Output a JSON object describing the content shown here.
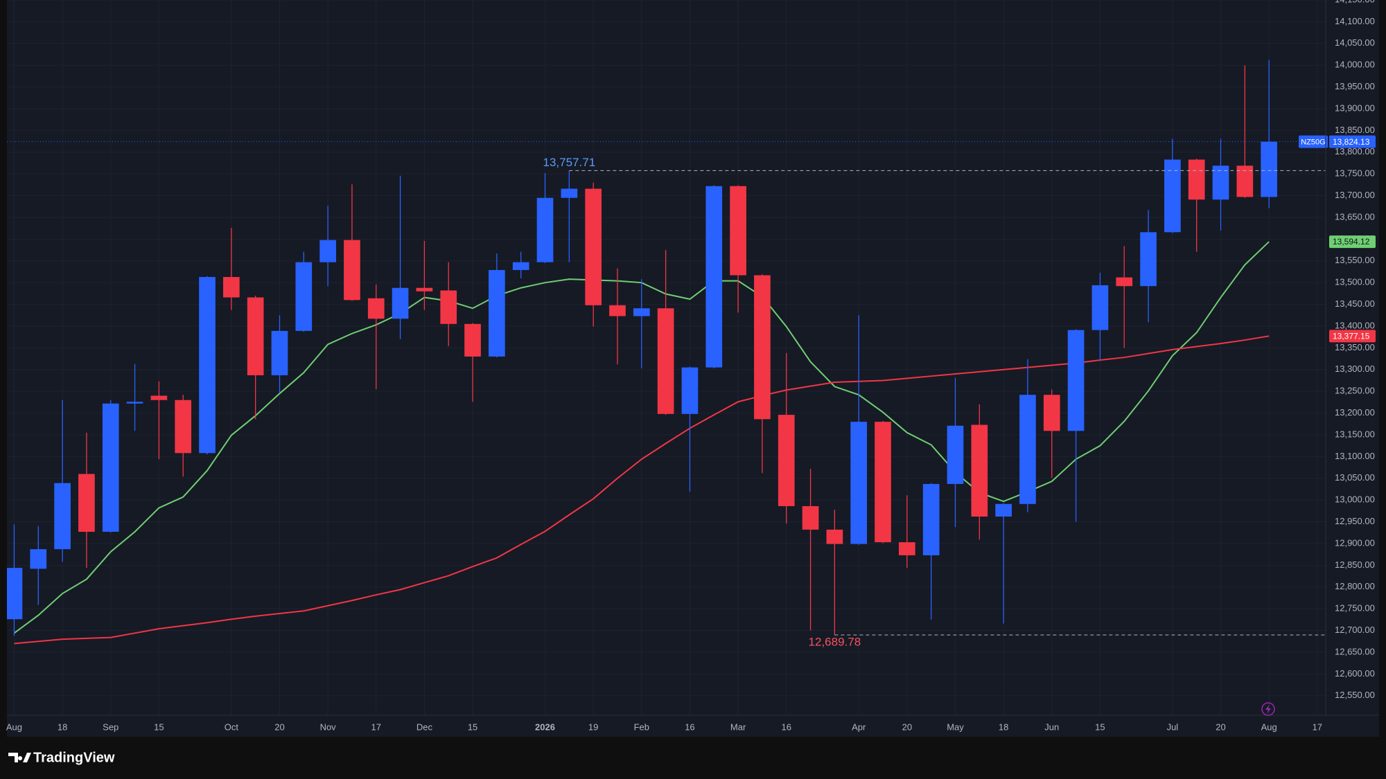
{
  "chart_data": {
    "type": "candlestick",
    "symbol": "NZ50G",
    "up_color": "#2962ff",
    "down_color": "#f23645",
    "open": [
      12726,
      12842,
      12887,
      13060,
      12927,
      13222,
      13240,
      13230,
      13108,
      13513,
      13466,
      13287,
      13389,
      13547,
      13598,
      13464,
      13417,
      13488,
      13482,
      13405,
      13330,
      13529,
      13547,
      13695,
      13716,
      13448,
      13423,
      13441,
      13198,
      13305,
      13722,
      13517,
      13196,
      12986,
      12932,
      12899,
      13180,
      12903,
      12873,
      13037,
      13173,
      12962,
      12991,
      13242,
      13159,
      13391,
      13512,
      13492,
      13616,
      13783,
      13691,
      13769,
      13697
    ],
    "high": [
      12944,
      12940,
      13230,
      13155,
      13230,
      13313,
      13273,
      13242,
      13515,
      13626,
      13470,
      13425,
      13571,
      13677,
      13726,
      13496,
      13746,
      13596,
      13547,
      13407,
      13567,
      13571,
      13752,
      13757.71,
      13730,
      13533,
      13508,
      13575,
      13307,
      13724,
      13724,
      13519,
      13338,
      13072,
      12978,
      13425,
      13182,
      13011,
      13039,
      13281,
      13220,
      12993,
      13324,
      13254,
      13393,
      13523,
      13584,
      13667,
      13831,
      13785,
      13831,
      14000,
      14012
    ],
    "low": [
      12688,
      12759,
      12858,
      12844,
      12925,
      13159,
      13094,
      13054,
      13105,
      13437,
      13186,
      13246,
      13387,
      13492,
      13458,
      13255,
      13370,
      13437,
      13354,
      13226,
      13328,
      13510,
      13545,
      13547,
      13399,
      13312,
      13303,
      13196,
      13019,
      13303,
      13431,
      13062,
      12946,
      12700,
      12689.78,
      12897,
      12901,
      12844,
      12725,
      12938,
      12909,
      12716,
      12972,
      13051,
      12950,
      13320,
      13350,
      13409,
      13614,
      13571,
      13620,
      13695,
      13671
    ],
    "close": [
      12844,
      12887,
      13039,
      12927,
      13222,
      13226,
      13230,
      13108,
      13513,
      13466,
      13287,
      13389,
      13547,
      13598,
      13460,
      13417,
      13488,
      13480,
      13405,
      13330,
      13529,
      13547,
      13695,
      13716,
      13448,
      13423,
      13441,
      13198,
      13305,
      13722,
      13517,
      13186,
      12986,
      12932,
      12899,
      13180,
      12903,
      12873,
      13037,
      13171,
      12962,
      12991,
      13242,
      13159,
      13391,
      13494,
      13492,
      13616,
      13783,
      13691,
      13769,
      13697,
      13824.13
    ],
    "price_label": "13,824.13",
    "lines": [
      {
        "color": "#6fcf72",
        "values": [
          12694,
          12735,
          12785,
          12818,
          12881,
          12927,
          12982,
          13007,
          13068,
          13149,
          13194,
          13245,
          13293,
          13358,
          13383,
          13403,
          13429,
          13466,
          13458,
          13441,
          13470,
          13488,
          13500,
          13508,
          13506,
          13504,
          13500,
          13474,
          13462,
          13504,
          13504,
          13468,
          13399,
          13318,
          13261,
          13242,
          13202,
          13155,
          13127,
          13064,
          13017,
          12997,
          13019,
          13043,
          13094,
          13125,
          13181,
          13251,
          13332,
          13385,
          13466,
          13541,
          13594.12
        ],
        "last_label": "13,594.12"
      },
      {
        "color": "#f23645",
        "values": [
          12670,
          12675,
          12680,
          12682,
          12684,
          12694,
          12704,
          12711,
          12718,
          12726,
          12733,
          12739,
          12745,
          12757,
          12769,
          12782,
          12794,
          12810,
          12826,
          12847,
          12867,
          12898,
          12928,
          12966,
          13003,
          13050,
          13094,
          13130,
          13165,
          13196,
          13226,
          13240,
          13253,
          13262,
          13271,
          13273,
          13275,
          13280,
          13285,
          13290,
          13295,
          13300,
          13305,
          13310,
          13315,
          13322,
          13328,
          13337,
          13346,
          13353,
          13360,
          13368,
          13377.15
        ],
        "last_label": "13,377.15"
      }
    ],
    "annotations": [
      {
        "text": "13,757.71",
        "value": 13757.71,
        "at": 23,
        "color": "#5b9cf6"
      },
      {
        "text": "12,689.78",
        "value": 12689.78,
        "at": 34,
        "color": "#f7525f"
      }
    ],
    "xlim": [
      -0.3,
      54.35
    ],
    "xticks": [
      {
        "value": 0,
        "label": "Aug"
      },
      {
        "value": 2,
        "label": "18"
      },
      {
        "value": 4,
        "label": "Sep"
      },
      {
        "value": 6,
        "label": "15"
      },
      {
        "value": 9,
        "label": "Oct"
      },
      {
        "value": 11,
        "label": "20"
      },
      {
        "value": 13,
        "label": "Nov"
      },
      {
        "value": 15,
        "label": "17"
      },
      {
        "value": 17,
        "label": "Dec"
      },
      {
        "value": 19,
        "label": "15"
      },
      {
        "value": 22,
        "label": "2026"
      },
      {
        "value": 24,
        "label": "19"
      },
      {
        "value": 26,
        "label": "Feb"
      },
      {
        "value": 28,
        "label": "16"
      },
      {
        "value": 30,
        "label": "Mar"
      },
      {
        "value": 32,
        "label": "16"
      },
      {
        "value": 35,
        "label": "Apr"
      },
      {
        "value": 37,
        "label": "20"
      },
      {
        "value": 39,
        "label": "May"
      },
      {
        "value": 41,
        "label": "18"
      },
      {
        "value": 43,
        "label": "Jun"
      },
      {
        "value": 45,
        "label": "15"
      },
      {
        "value": 48,
        "label": "Jul"
      },
      {
        "value": 50,
        "label": "20"
      },
      {
        "value": 52,
        "label": "Aug"
      },
      {
        "value": 54,
        "label": "17"
      }
    ],
    "ylim": [
      12505,
      14150
    ],
    "yticks": [
      {
        "value": 12550,
        "label": "12,550.00"
      },
      {
        "value": 12600,
        "label": "12,600.00"
      },
      {
        "value": 12650,
        "label": "12,650.00"
      },
      {
        "value": 12700,
        "label": "12,700.00"
      },
      {
        "value": 12750,
        "label": "12,750.00"
      },
      {
        "value": 12800,
        "label": "12,800.00"
      },
      {
        "value": 12850,
        "label": "12,850.00"
      },
      {
        "value": 12900,
        "label": "12,900.00"
      },
      {
        "value": 12950,
        "label": "12,950.00"
      },
      {
        "value": 13000,
        "label": "13,000.00"
      },
      {
        "value": 13050,
        "label": "13,050.00"
      },
      {
        "value": 13100,
        "label": "13,100.00"
      },
      {
        "value": 13150,
        "label": "13,150.00"
      },
      {
        "value": 13200,
        "label": "13,200.00"
      },
      {
        "value": 13250,
        "label": "13,250.00"
      },
      {
        "value": 13300,
        "label": "13,300.00"
      },
      {
        "value": 13350,
        "label": "13,350.00"
      },
      {
        "value": 13400,
        "label": "13,400.00"
      },
      {
        "value": 13450,
        "label": "13,450.00"
      },
      {
        "value": 13500,
        "label": "13,500.00"
      },
      {
        "value": 13550,
        "label": "13,550.00"
      },
      {
        "value": 13600,
        "label": "13,600.00"
      },
      {
        "value": 13650,
        "label": "13,650.00"
      },
      {
        "value": 13700,
        "label": "13,700.00"
      },
      {
        "value": 13750,
        "label": "13,750.00"
      },
      {
        "value": 13800,
        "label": "13,800.00"
      },
      {
        "value": 13850,
        "label": "13,850.00"
      },
      {
        "value": 13900,
        "label": "13,900.00"
      },
      {
        "value": 13950,
        "label": "13,950.00"
      },
      {
        "value": 14000,
        "label": "14,000.00"
      },
      {
        "value": 14050,
        "label": "14,050.00"
      },
      {
        "value": 14100,
        "label": "14,100.00"
      },
      {
        "value": 14150,
        "label": "14,150.00"
      }
    ],
    "grid": true
  },
  "footer": {
    "brand": "TradingView"
  }
}
